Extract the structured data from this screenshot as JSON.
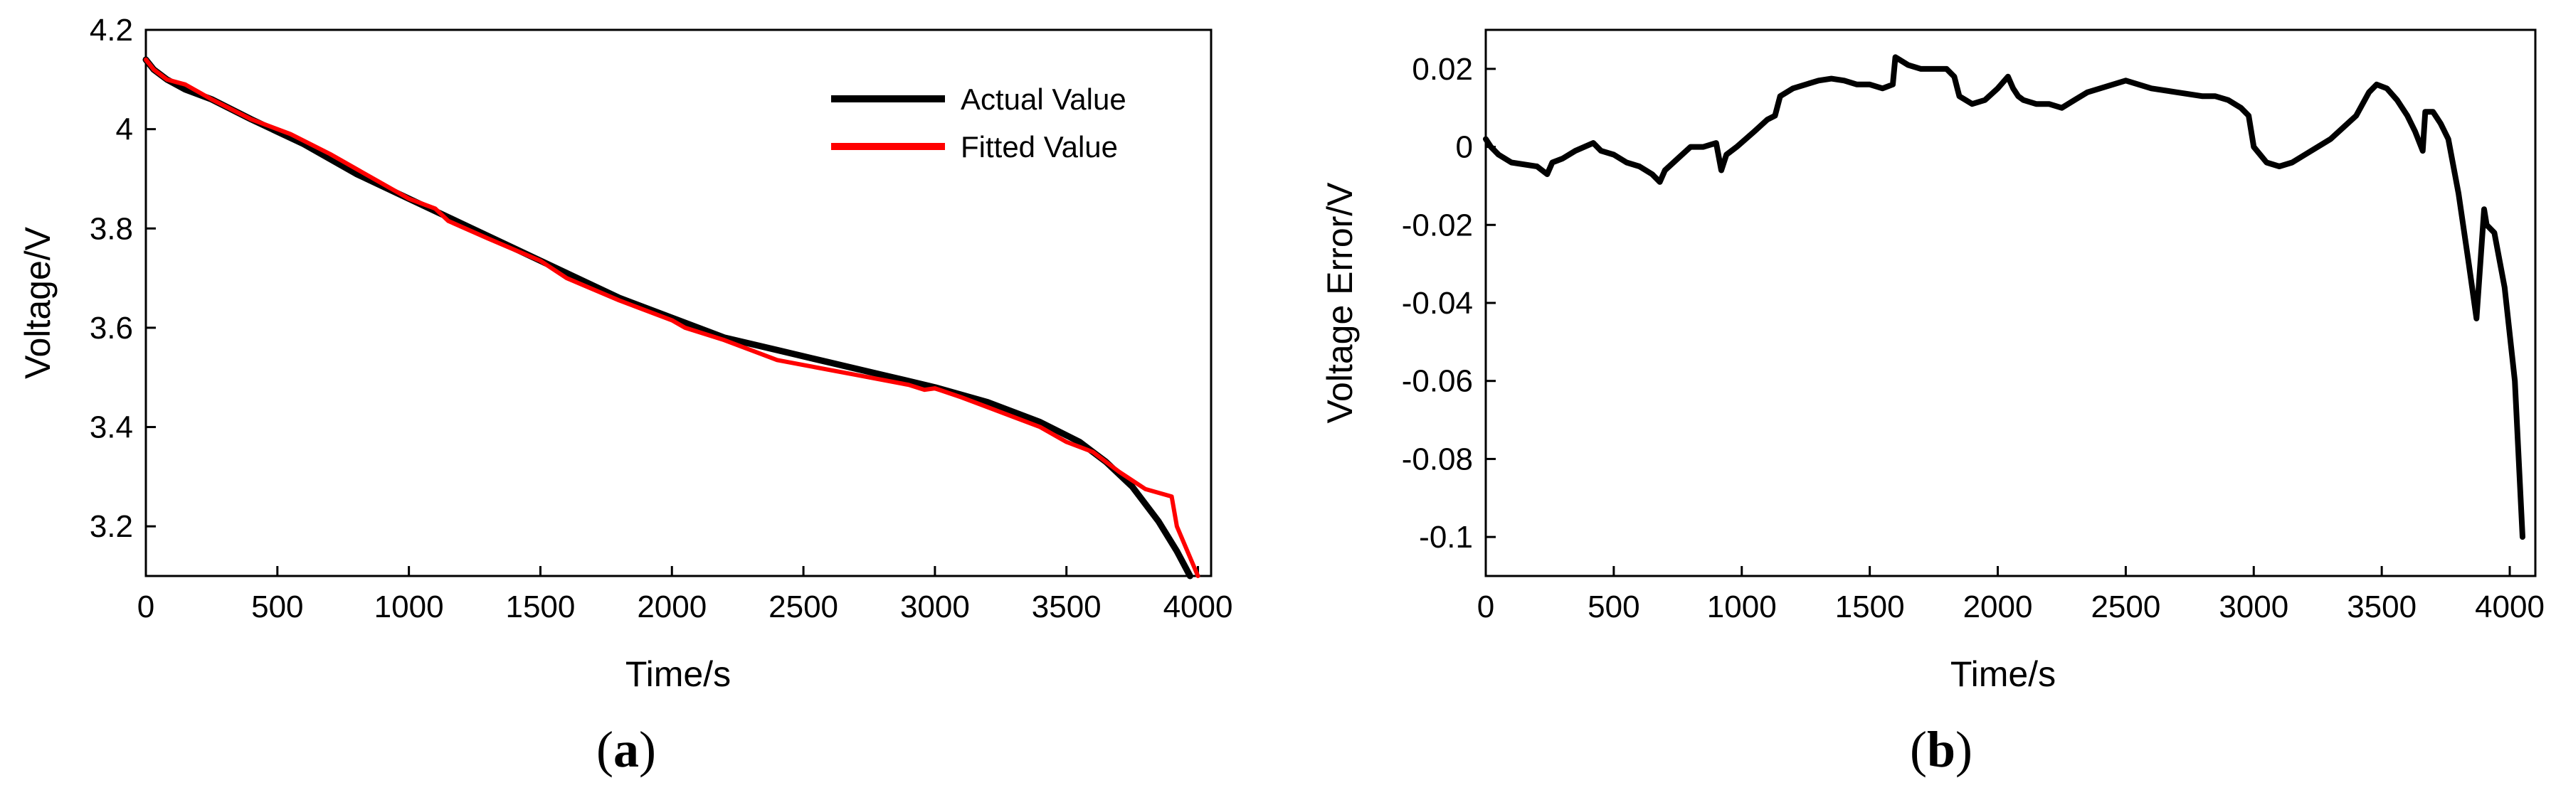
{
  "chart_data": [
    {
      "type": "line",
      "panel": "a",
      "caption": {
        "open": "(",
        "letter": "a",
        "close": ")"
      },
      "xlabel": "Time/s",
      "ylabel": "Voltage/V",
      "xlim": [
        0,
        4050
      ],
      "ylim": [
        3.1,
        4.2
      ],
      "xticks": [
        0,
        500,
        1000,
        1500,
        2000,
        2500,
        3000,
        3500,
        4000
      ],
      "yticks": [
        3.2,
        3.4,
        3.6,
        3.8,
        4,
        4.2
      ],
      "ytick_labels": [
        "3.2",
        "3.4",
        "3.6",
        "3.8",
        "4",
        "4.2"
      ],
      "legend_position": "top-right",
      "series": [
        {
          "name": "Actual Value",
          "color": "#000000",
          "x": [
            0,
            30,
            80,
            150,
            250,
            400,
            600,
            800,
            1000,
            1200,
            1400,
            1600,
            1800,
            2000,
            2200,
            2400,
            2600,
            2800,
            3000,
            3200,
            3400,
            3550,
            3650,
            3750,
            3850,
            3920,
            3970
          ],
          "y": [
            4.14,
            4.12,
            4.1,
            4.08,
            4.06,
            4.02,
            3.97,
            3.91,
            3.86,
            3.81,
            3.76,
            3.71,
            3.66,
            3.62,
            3.58,
            3.555,
            3.53,
            3.505,
            3.48,
            3.45,
            3.41,
            3.37,
            3.33,
            3.28,
            3.21,
            3.15,
            3.1
          ]
        },
        {
          "name": "Fitted Value",
          "color": "#ff0000",
          "x": [
            0,
            30,
            80,
            150,
            250,
            400,
            550,
            700,
            800,
            1000,
            1100,
            1150,
            1300,
            1500,
            1600,
            1800,
            1850,
            2000,
            2050,
            2200,
            2300,
            2400,
            2500,
            2700,
            2900,
            2960,
            3000,
            3100,
            3200,
            3300,
            3400,
            3450,
            3500,
            3600,
            3700,
            3800,
            3900,
            3920,
            4000
          ],
          "y": [
            4.14,
            4.12,
            4.1,
            4.09,
            4.06,
            4.02,
            3.99,
            3.95,
            3.92,
            3.86,
            3.84,
            3.815,
            3.78,
            3.735,
            3.7,
            3.655,
            3.645,
            3.615,
            3.6,
            3.575,
            3.555,
            3.535,
            3.525,
            3.505,
            3.485,
            3.475,
            3.478,
            3.46,
            3.44,
            3.42,
            3.4,
            3.385,
            3.37,
            3.35,
            3.31,
            3.275,
            3.26,
            3.2,
            3.1
          ]
        }
      ]
    },
    {
      "type": "line",
      "panel": "b",
      "caption": {
        "open": "(",
        "letter": "b",
        "close": ")"
      },
      "xlabel": "Time/s",
      "ylabel": "Voltage Error/V",
      "xlim": [
        0,
        4100
      ],
      "ylim": [
        -0.11,
        0.03
      ],
      "xticks": [
        0,
        500,
        1000,
        1500,
        2000,
        2500,
        3000,
        3500,
        4000
      ],
      "yticks": [
        -0.1,
        -0.08,
        -0.06,
        -0.04,
        -0.02,
        0,
        0.02
      ],
      "ytick_labels": [
        "-0.1",
        "-0.08",
        "-0.06",
        "-0.04",
        "-0.02",
        "0",
        "0.02"
      ],
      "series": [
        {
          "name": "Voltage Error",
          "color": "#000000",
          "x": [
            0,
            20,
            50,
            100,
            200,
            240,
            260,
            300,
            350,
            420,
            450,
            500,
            550,
            600,
            650,
            680,
            700,
            750,
            800,
            850,
            900,
            920,
            940,
            980,
            1050,
            1100,
            1130,
            1150,
            1200,
            1250,
            1300,
            1350,
            1400,
            1450,
            1500,
            1550,
            1590,
            1600,
            1650,
            1700,
            1750,
            1800,
            1830,
            1850,
            1900,
            1950,
            2000,
            2040,
            2060,
            2080,
            2100,
            2150,
            2200,
            2250,
            2300,
            2350,
            2400,
            2500,
            2550,
            2600,
            2700,
            2800,
            2850,
            2900,
            2950,
            2980,
            3000,
            3050,
            3100,
            3150,
            3200,
            3300,
            3400,
            3450,
            3480,
            3520,
            3560,
            3600,
            3630,
            3660,
            3670,
            3700,
            3730,
            3760,
            3800,
            3840,
            3870,
            3900,
            3910,
            3940,
            3980,
            4020,
            4050
          ],
          "y": [
            0.002,
            0.0,
            -0.002,
            -0.004,
            -0.005,
            -0.007,
            -0.004,
            -0.003,
            -0.001,
            0.001,
            -0.001,
            -0.002,
            -0.004,
            -0.005,
            -0.007,
            -0.009,
            -0.006,
            -0.003,
            0.0,
            0.0,
            0.001,
            -0.006,
            -0.002,
            0.0,
            0.004,
            0.007,
            0.008,
            0.013,
            0.015,
            0.016,
            0.017,
            0.0175,
            0.017,
            0.016,
            0.016,
            0.015,
            0.016,
            0.023,
            0.021,
            0.02,
            0.02,
            0.02,
            0.018,
            0.013,
            0.011,
            0.012,
            0.015,
            0.018,
            0.015,
            0.013,
            0.012,
            0.011,
            0.011,
            0.01,
            0.012,
            0.014,
            0.015,
            0.017,
            0.016,
            0.015,
            0.014,
            0.013,
            0.013,
            0.012,
            0.01,
            0.008,
            0.0,
            -0.004,
            -0.005,
            -0.004,
            -0.002,
            0.002,
            0.008,
            0.014,
            0.016,
            0.015,
            0.012,
            0.008,
            0.004,
            -0.001,
            0.009,
            0.009,
            0.006,
            0.002,
            -0.012,
            -0.03,
            -0.044,
            -0.016,
            -0.02,
            -0.022,
            -0.036,
            -0.06,
            -0.1
          ]
        }
      ]
    }
  ]
}
